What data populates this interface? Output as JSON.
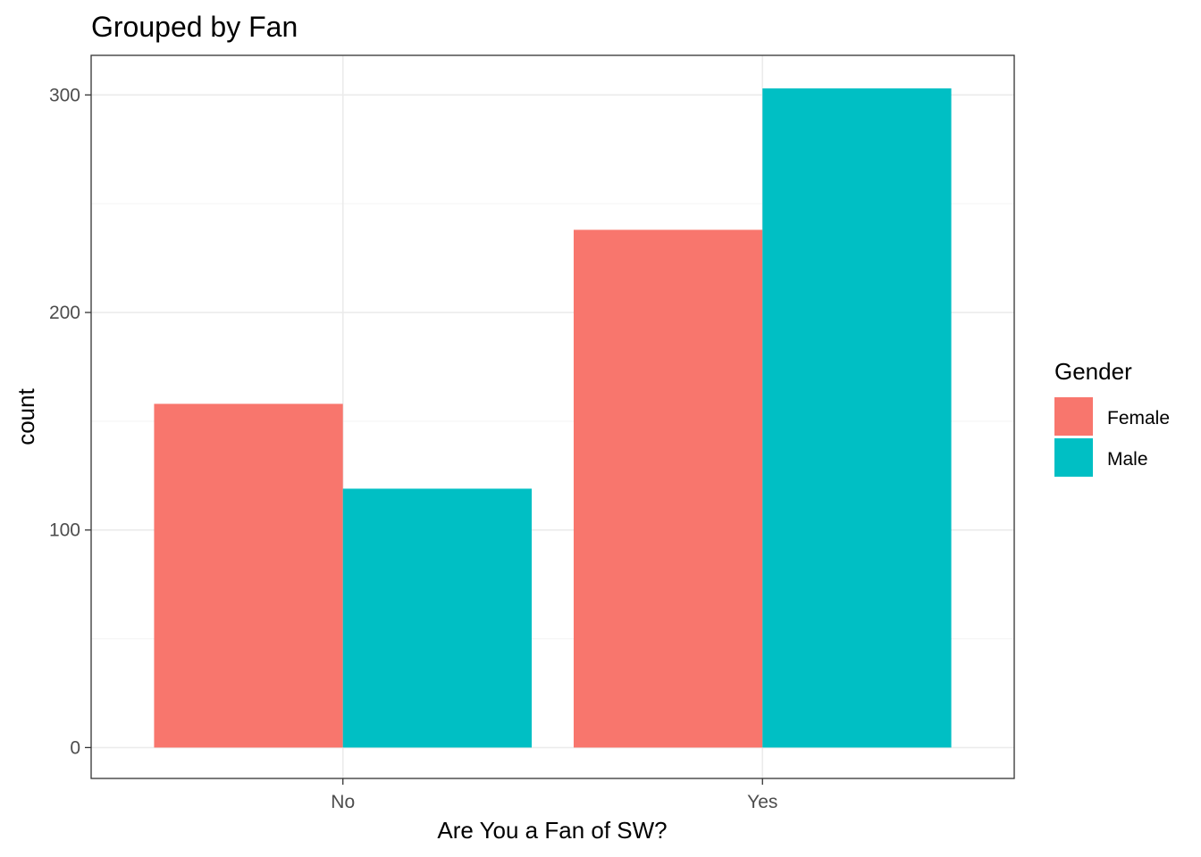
{
  "chart_data": {
    "type": "bar",
    "title": "Grouped by Fan",
    "xlabel": "Are You a Fan of SW?",
    "ylabel": "count",
    "categories": [
      "No",
      "Yes"
    ],
    "series": [
      {
        "name": "Female",
        "values": [
          158,
          238
        ],
        "color": "#F8766D"
      },
      {
        "name": "Male",
        "values": [
          119,
          303
        ],
        "color": "#00BFC4"
      }
    ],
    "ylim": [
      -14.2,
      318.2
    ],
    "y_ticks": [
      0,
      100,
      200,
      300
    ],
    "y_tick_labels": [
      "0",
      "100",
      "200",
      "300"
    ],
    "grid": true,
    "legend": {
      "title": "Gender",
      "position": "right"
    }
  },
  "colors": {
    "panel_border": "#333333",
    "grid_major": "#ebebeb",
    "grid_minor": "#f5f5f5",
    "tick_text": "#4d4d4d"
  }
}
